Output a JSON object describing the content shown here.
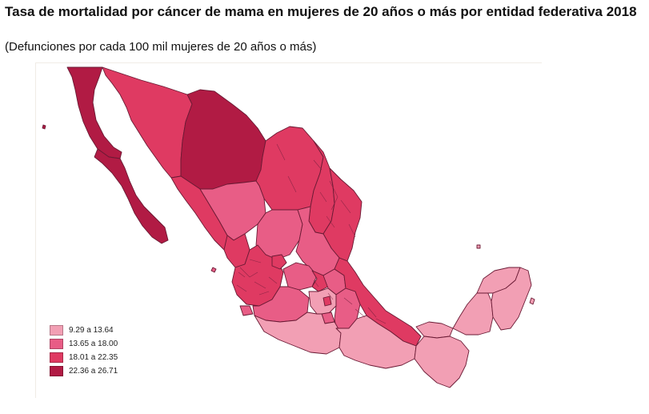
{
  "header": {
    "title": "Tasa de mortalidad por cáncer de mama en mujeres de 20 años o más por entidad federativa 2018",
    "subtitle": "(Defunciones por cada 100 mil mujeres de 20 años o más)"
  },
  "legend": {
    "items": [
      {
        "label": "9.29 a 13.64",
        "color": "#f29fb4"
      },
      {
        "label": "13.65 a 18.00",
        "color": "#e85d86"
      },
      {
        "label": "18.01 a 22.35",
        "color": "#df3a62"
      },
      {
        "label": "22.36 a 26.71",
        "color": "#b11b44"
      }
    ]
  },
  "colors": {
    "class1": "#f29fb4",
    "class2": "#e85d86",
    "class3": "#df3a62",
    "class4": "#b11b44",
    "border": "#6a1a34"
  }
}
